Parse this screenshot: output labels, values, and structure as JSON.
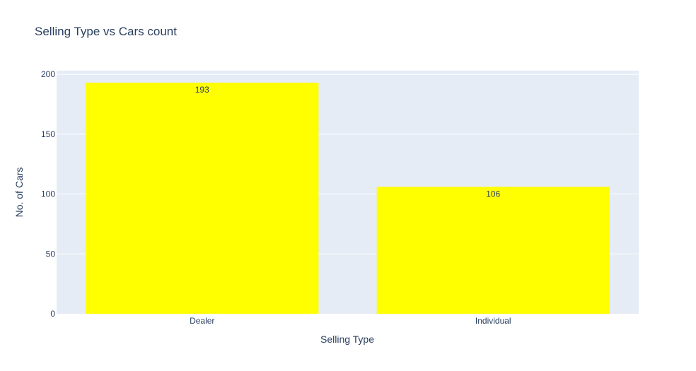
{
  "chart_data": {
    "type": "bar",
    "title": "Selling Type vs Cars count",
    "xlabel": "Selling Type",
    "ylabel": "No. of Cars",
    "categories": [
      "Dealer",
      "Individual"
    ],
    "values": [
      193,
      106
    ],
    "data_labels": [
      "193",
      "106"
    ],
    "ylim": [
      0,
      203
    ],
    "yticks": [
      0,
      50,
      100,
      150,
      200
    ],
    "ytick_labels": [
      "0",
      "50",
      "100",
      "150",
      "200"
    ],
    "grid": true,
    "legend": "none",
    "colors": {
      "bar": "#ffff00",
      "plot_background": "#e5ecf6",
      "gridline": "#ffffff",
      "text": "#2a3f5f"
    }
  }
}
